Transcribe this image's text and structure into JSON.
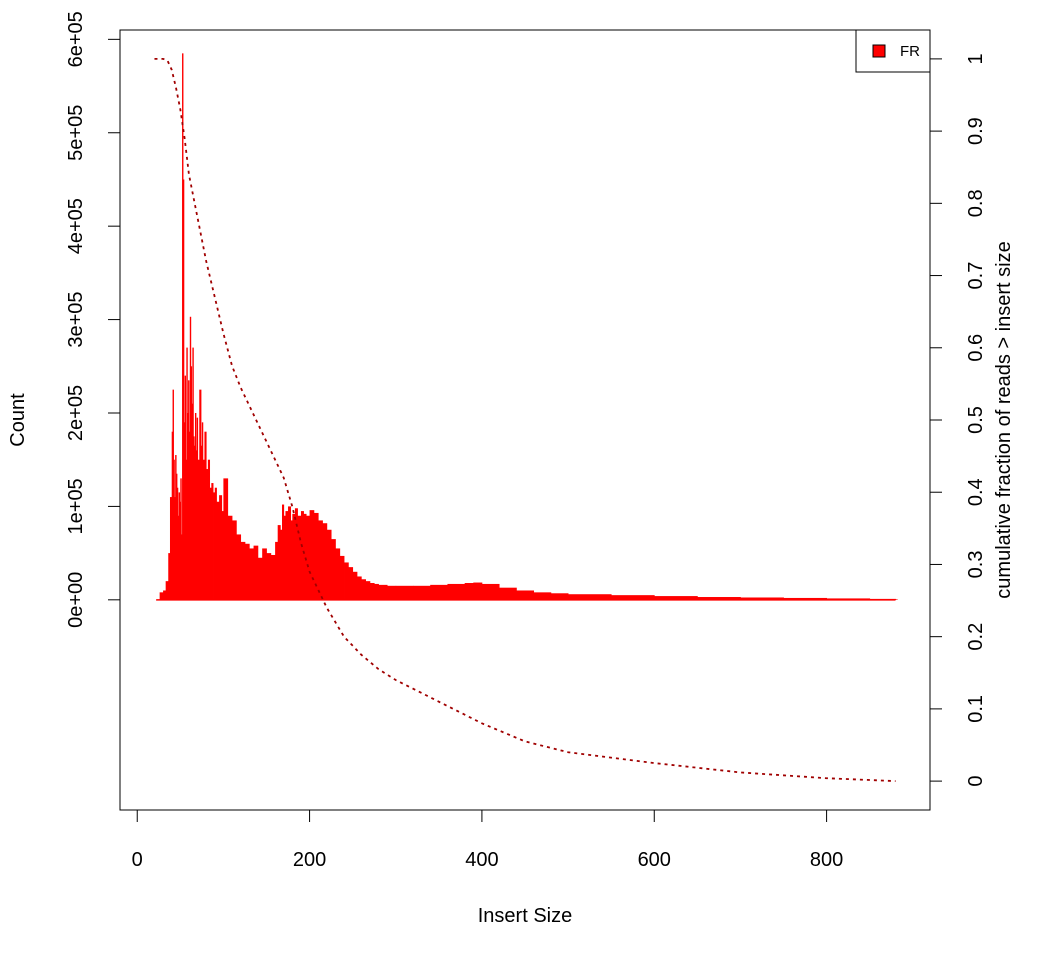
{
  "chart_data": {
    "type": "bar",
    "title": "",
    "xlabel": "Insert Size",
    "ylabel": "Count",
    "y2label": "cumulative fraction of reads > insert size",
    "xlim": [
      -20,
      920
    ],
    "ylim": [
      -225000.0,
      610000.0
    ],
    "y2lim": [
      -0.04,
      1.04
    ],
    "x_ticks": [
      0,
      200,
      400,
      600,
      800
    ],
    "x_tick_labels": [
      "0",
      "200",
      "400",
      "600",
      "800"
    ],
    "y_ticks": [
      0,
      100000,
      200000,
      300000,
      400000,
      500000,
      600000
    ],
    "y_tick_labels": [
      "0e+00",
      "1e+05",
      "2e+05",
      "3e+05",
      "4e+05",
      "5e+05",
      "6e+05"
    ],
    "y2_ticks": [
      0,
      0.1,
      0.2,
      0.3,
      0.4,
      0.5,
      0.6,
      0.7,
      0.8,
      0.9,
      1
    ],
    "y2_tick_labels": [
      "0",
      "0.1",
      "0.2",
      "0.3",
      "0.4",
      "0.5",
      "0.6",
      "0.7",
      "0.8",
      "0.9",
      "1"
    ],
    "legend": {
      "position": "top-right",
      "entries": [
        {
          "label": "FR",
          "color": "#ff0000"
        }
      ]
    },
    "grid": false,
    "bar_color": "#ff0000",
    "cumulative_color": "#a00000",
    "series": [
      {
        "name": "FR",
        "kind": "histogram",
        "x": [
          22,
          26,
          30,
          33,
          36,
          38,
          40,
          41,
          42,
          43,
          44,
          45,
          46,
          47,
          48,
          49,
          50,
          51,
          52,
          53,
          54,
          55,
          56,
          57,
          58,
          59,
          60,
          61,
          62,
          63,
          64,
          65,
          66,
          67,
          68,
          69,
          70,
          72,
          74,
          75,
          76,
          78,
          80,
          82,
          84,
          86,
          88,
          90,
          92,
          95,
          98,
          100,
          105,
          110,
          115,
          120,
          125,
          130,
          135,
          140,
          145,
          150,
          155,
          160,
          163,
          166,
          168,
          170,
          172,
          175,
          178,
          180,
          183,
          186,
          190,
          193,
          196,
          200,
          205,
          210,
          215,
          220,
          225,
          230,
          235,
          240,
          245,
          250,
          255,
          260,
          265,
          270,
          275,
          280,
          290,
          300,
          320,
          340,
          360,
          380,
          390,
          400,
          420,
          440,
          460,
          480,
          500,
          550,
          600,
          650,
          700,
          750,
          800,
          850,
          880
        ],
        "y": [
          0,
          8000,
          10000,
          20000,
          50000,
          110000,
          180000,
          225000,
          150000,
          110000,
          155000,
          135000,
          120000,
          90000,
          115000,
          105000,
          130000,
          70000,
          585000,
          450000,
          190000,
          240000,
          150000,
          270000,
          200000,
          235000,
          180000,
          303000,
          250000,
          210000,
          270000,
          175000,
          165000,
          200000,
          160000,
          195000,
          150000,
          225000,
          165000,
          190000,
          150000,
          180000,
          140000,
          150000,
          120000,
          125000,
          115000,
          120000,
          105000,
          112000,
          95000,
          130000,
          90000,
          85000,
          70000,
          62000,
          60000,
          55000,
          58000,
          45000,
          55000,
          50000,
          48000,
          62000,
          80000,
          75000,
          102000,
          90000,
          95000,
          100000,
          85000,
          92000,
          98000,
          90000,
          95000,
          92000,
          90000,
          96000,
          93000,
          85000,
          82000,
          75000,
          65000,
          55000,
          47000,
          40000,
          35000,
          30000,
          25000,
          22000,
          20000,
          18000,
          17000,
          16000,
          15000,
          15000,
          15000,
          16000,
          17000,
          18000,
          18500,
          17000,
          13000,
          10000,
          8000,
          7000,
          6000,
          5000,
          4000,
          3000,
          2500,
          2000,
          1500,
          1000,
          500
        ]
      },
      {
        "name": "cumulative fraction of reads > insert size",
        "kind": "line",
        "axis": "right",
        "x": [
          20,
          30,
          35,
          40,
          45,
          50,
          55,
          60,
          70,
          80,
          90,
          100,
          110,
          120,
          130,
          140,
          150,
          160,
          170,
          180,
          190,
          200,
          220,
          240,
          260,
          280,
          300,
          350,
          400,
          450,
          500,
          600,
          700,
          800,
          880
        ],
        "y": [
          1.0,
          1.0,
          0.998,
          0.985,
          0.96,
          0.93,
          0.89,
          0.84,
          0.78,
          0.72,
          0.67,
          0.62,
          0.575,
          0.545,
          0.52,
          0.495,
          0.47,
          0.445,
          0.42,
          0.38,
          0.33,
          0.29,
          0.24,
          0.2,
          0.175,
          0.155,
          0.14,
          0.11,
          0.08,
          0.055,
          0.04,
          0.025,
          0.012,
          0.004,
          0.0
        ]
      }
    ]
  }
}
